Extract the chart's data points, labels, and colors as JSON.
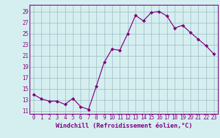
{
  "x": [
    0,
    1,
    2,
    3,
    4,
    5,
    6,
    7,
    8,
    9,
    10,
    11,
    12,
    13,
    14,
    15,
    16,
    17,
    18,
    19,
    20,
    21,
    22,
    23
  ],
  "y": [
    14,
    13.2,
    12.8,
    12.8,
    12.2,
    13.3,
    11.8,
    11.3,
    15.5,
    19.8,
    22.2,
    22.0,
    25.0,
    28.3,
    27.3,
    28.8,
    29.0,
    28.2,
    26.0,
    26.5,
    25.2,
    24.0,
    22.8,
    21.3
  ],
  "line_color": "#800080",
  "marker": "D",
  "marker_size": 2.2,
  "bg_color": "#d5eef0",
  "grid_color": "#9ab8c0",
  "xlabel": "Windchill (Refroidissement éolien,°C)",
  "xlabel_fontsize": 6.5,
  "ylabel_ticks": [
    11,
    13,
    15,
    17,
    19,
    21,
    23,
    25,
    27,
    29
  ],
  "xtick_labels": [
    "0",
    "1",
    "2",
    "3",
    "4",
    "5",
    "6",
    "7",
    "8",
    "9",
    "10",
    "11",
    "12",
    "13",
    "14",
    "15",
    "16",
    "17",
    "18",
    "19",
    "20",
    "21",
    "22",
    "23"
  ],
  "ylim": [
    10.5,
    30.2
  ],
  "xlim": [
    -0.5,
    23.5
  ],
  "tick_color": "#800080",
  "tick_fontsize": 5.5,
  "spine_color": "#800080"
}
